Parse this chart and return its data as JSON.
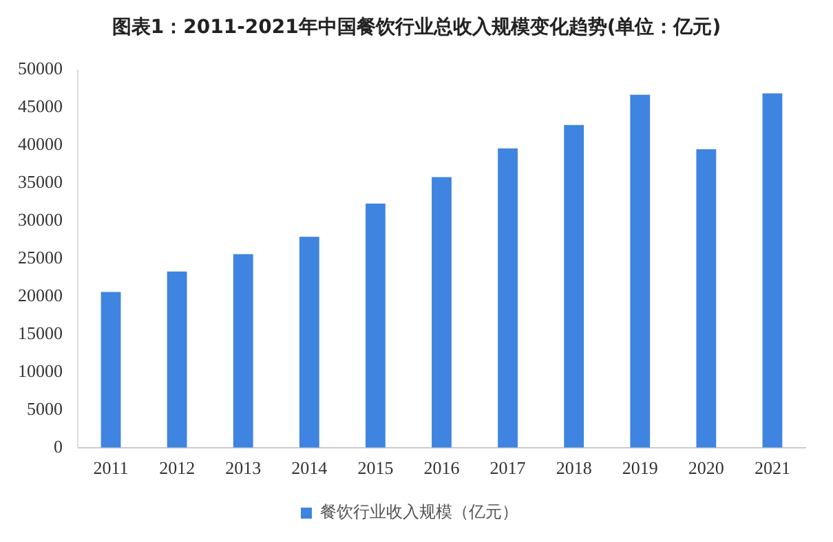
{
  "chart_data": {
    "type": "bar",
    "title": "图表1：2011-2021年中国餐饮行业总收入规模变化趋势(单位：亿元)",
    "categories": [
      "2011",
      "2012",
      "2013",
      "2014",
      "2015",
      "2016",
      "2017",
      "2018",
      "2019",
      "2020",
      "2021"
    ],
    "series": [
      {
        "name": "餐饮行业收入规模（亿元）",
        "color": "#3f84e0",
        "values": [
          20600,
          23300,
          25600,
          27900,
          32300,
          35800,
          39600,
          42700,
          46700,
          39500,
          46900
        ]
      }
    ],
    "ylim": [
      0,
      50000
    ],
    "yticks": [
      0,
      5000,
      10000,
      15000,
      20000,
      25000,
      30000,
      35000,
      40000,
      45000,
      50000
    ],
    "grid": false,
    "legend": "bottom"
  }
}
